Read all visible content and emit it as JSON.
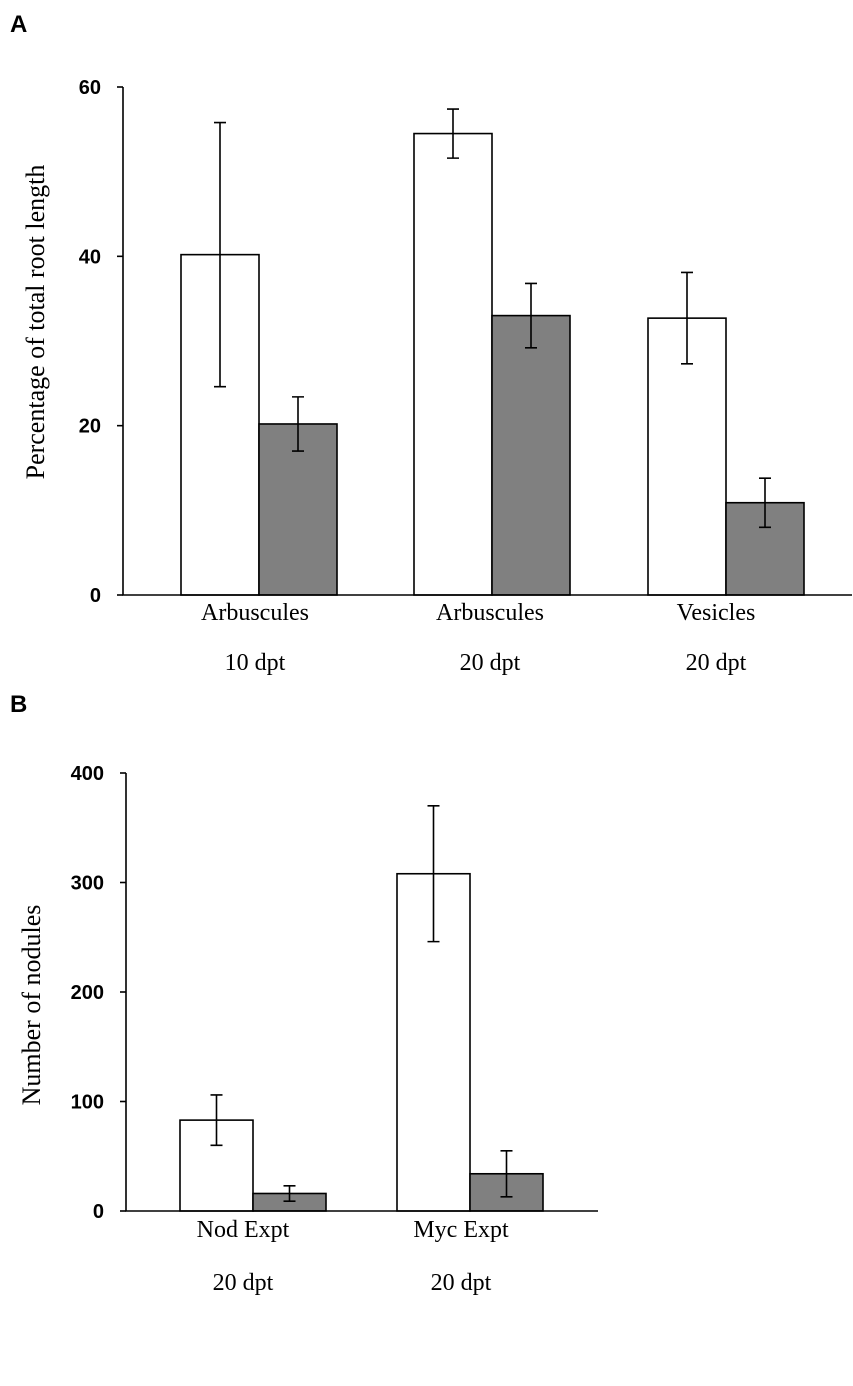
{
  "chart_data": [
    {
      "panel": "A",
      "type": "bar",
      "ylabel": "Percentage of total root length",
      "ylim": [
        0,
        60
      ],
      "yticks": [
        0,
        20,
        40,
        60
      ],
      "categories": [
        {
          "line1": "Arbuscules",
          "line2": "10 dpt"
        },
        {
          "line1": "Arbuscules",
          "line2": "20 dpt"
        },
        {
          "line1": "Vesicles",
          "line2": "20 dpt"
        }
      ],
      "series": [
        {
          "color": "#ffffff",
          "values": [
            40.2,
            54.5,
            32.7
          ],
          "errors": [
            15.6,
            2.9,
            5.4
          ]
        },
        {
          "color": "#808080",
          "values": [
            20.2,
            33.0,
            10.9
          ],
          "errors": [
            3.2,
            3.8,
            2.9
          ]
        }
      ],
      "grid": false
    },
    {
      "panel": "B",
      "type": "bar",
      "ylabel": "Number of nodules",
      "ylim": [
        0,
        400
      ],
      "yticks": [
        0,
        100,
        200,
        300,
        400
      ],
      "categories": [
        {
          "line1": "Nod Expt",
          "line2": "20 dpt"
        },
        {
          "line1": "Myc Expt",
          "line2": "20 dpt"
        }
      ],
      "series": [
        {
          "color": "#ffffff",
          "values": [
            83,
            308
          ],
          "errors": [
            23,
            62
          ]
        },
        {
          "color": "#808080",
          "values": [
            16,
            34
          ],
          "errors": [
            7,
            21
          ]
        }
      ],
      "grid": false
    }
  ]
}
